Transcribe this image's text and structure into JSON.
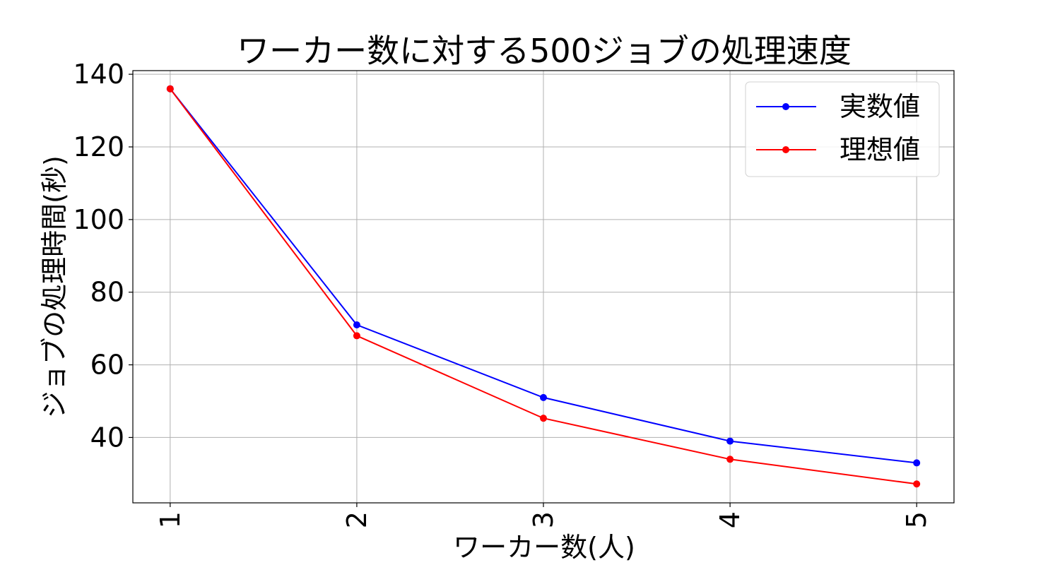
{
  "chart_data": {
    "type": "line",
    "title": "ワーカー数に対する500ジョブの処理速度",
    "xlabel": "ワーカー数(人)",
    "ylabel": "ジョブの処理時間(秒)",
    "x": [
      1,
      2,
      3,
      4,
      5
    ],
    "xticks": [
      "1",
      "2",
      "3",
      "4",
      "5"
    ],
    "xlim": [
      0.8,
      5.2
    ],
    "ylim": [
      22,
      141
    ],
    "yticks": [
      40,
      60,
      80,
      100,
      120,
      140
    ],
    "grid": true,
    "legend_position": "top-right",
    "series": [
      {
        "name": "実数値",
        "color": "#0000ff",
        "values": [
          136,
          71,
          51,
          39,
          33
        ]
      },
      {
        "name": "理想値",
        "color": "#ff0000",
        "values": [
          136,
          68,
          45.3,
          34,
          27.2
        ]
      }
    ]
  }
}
